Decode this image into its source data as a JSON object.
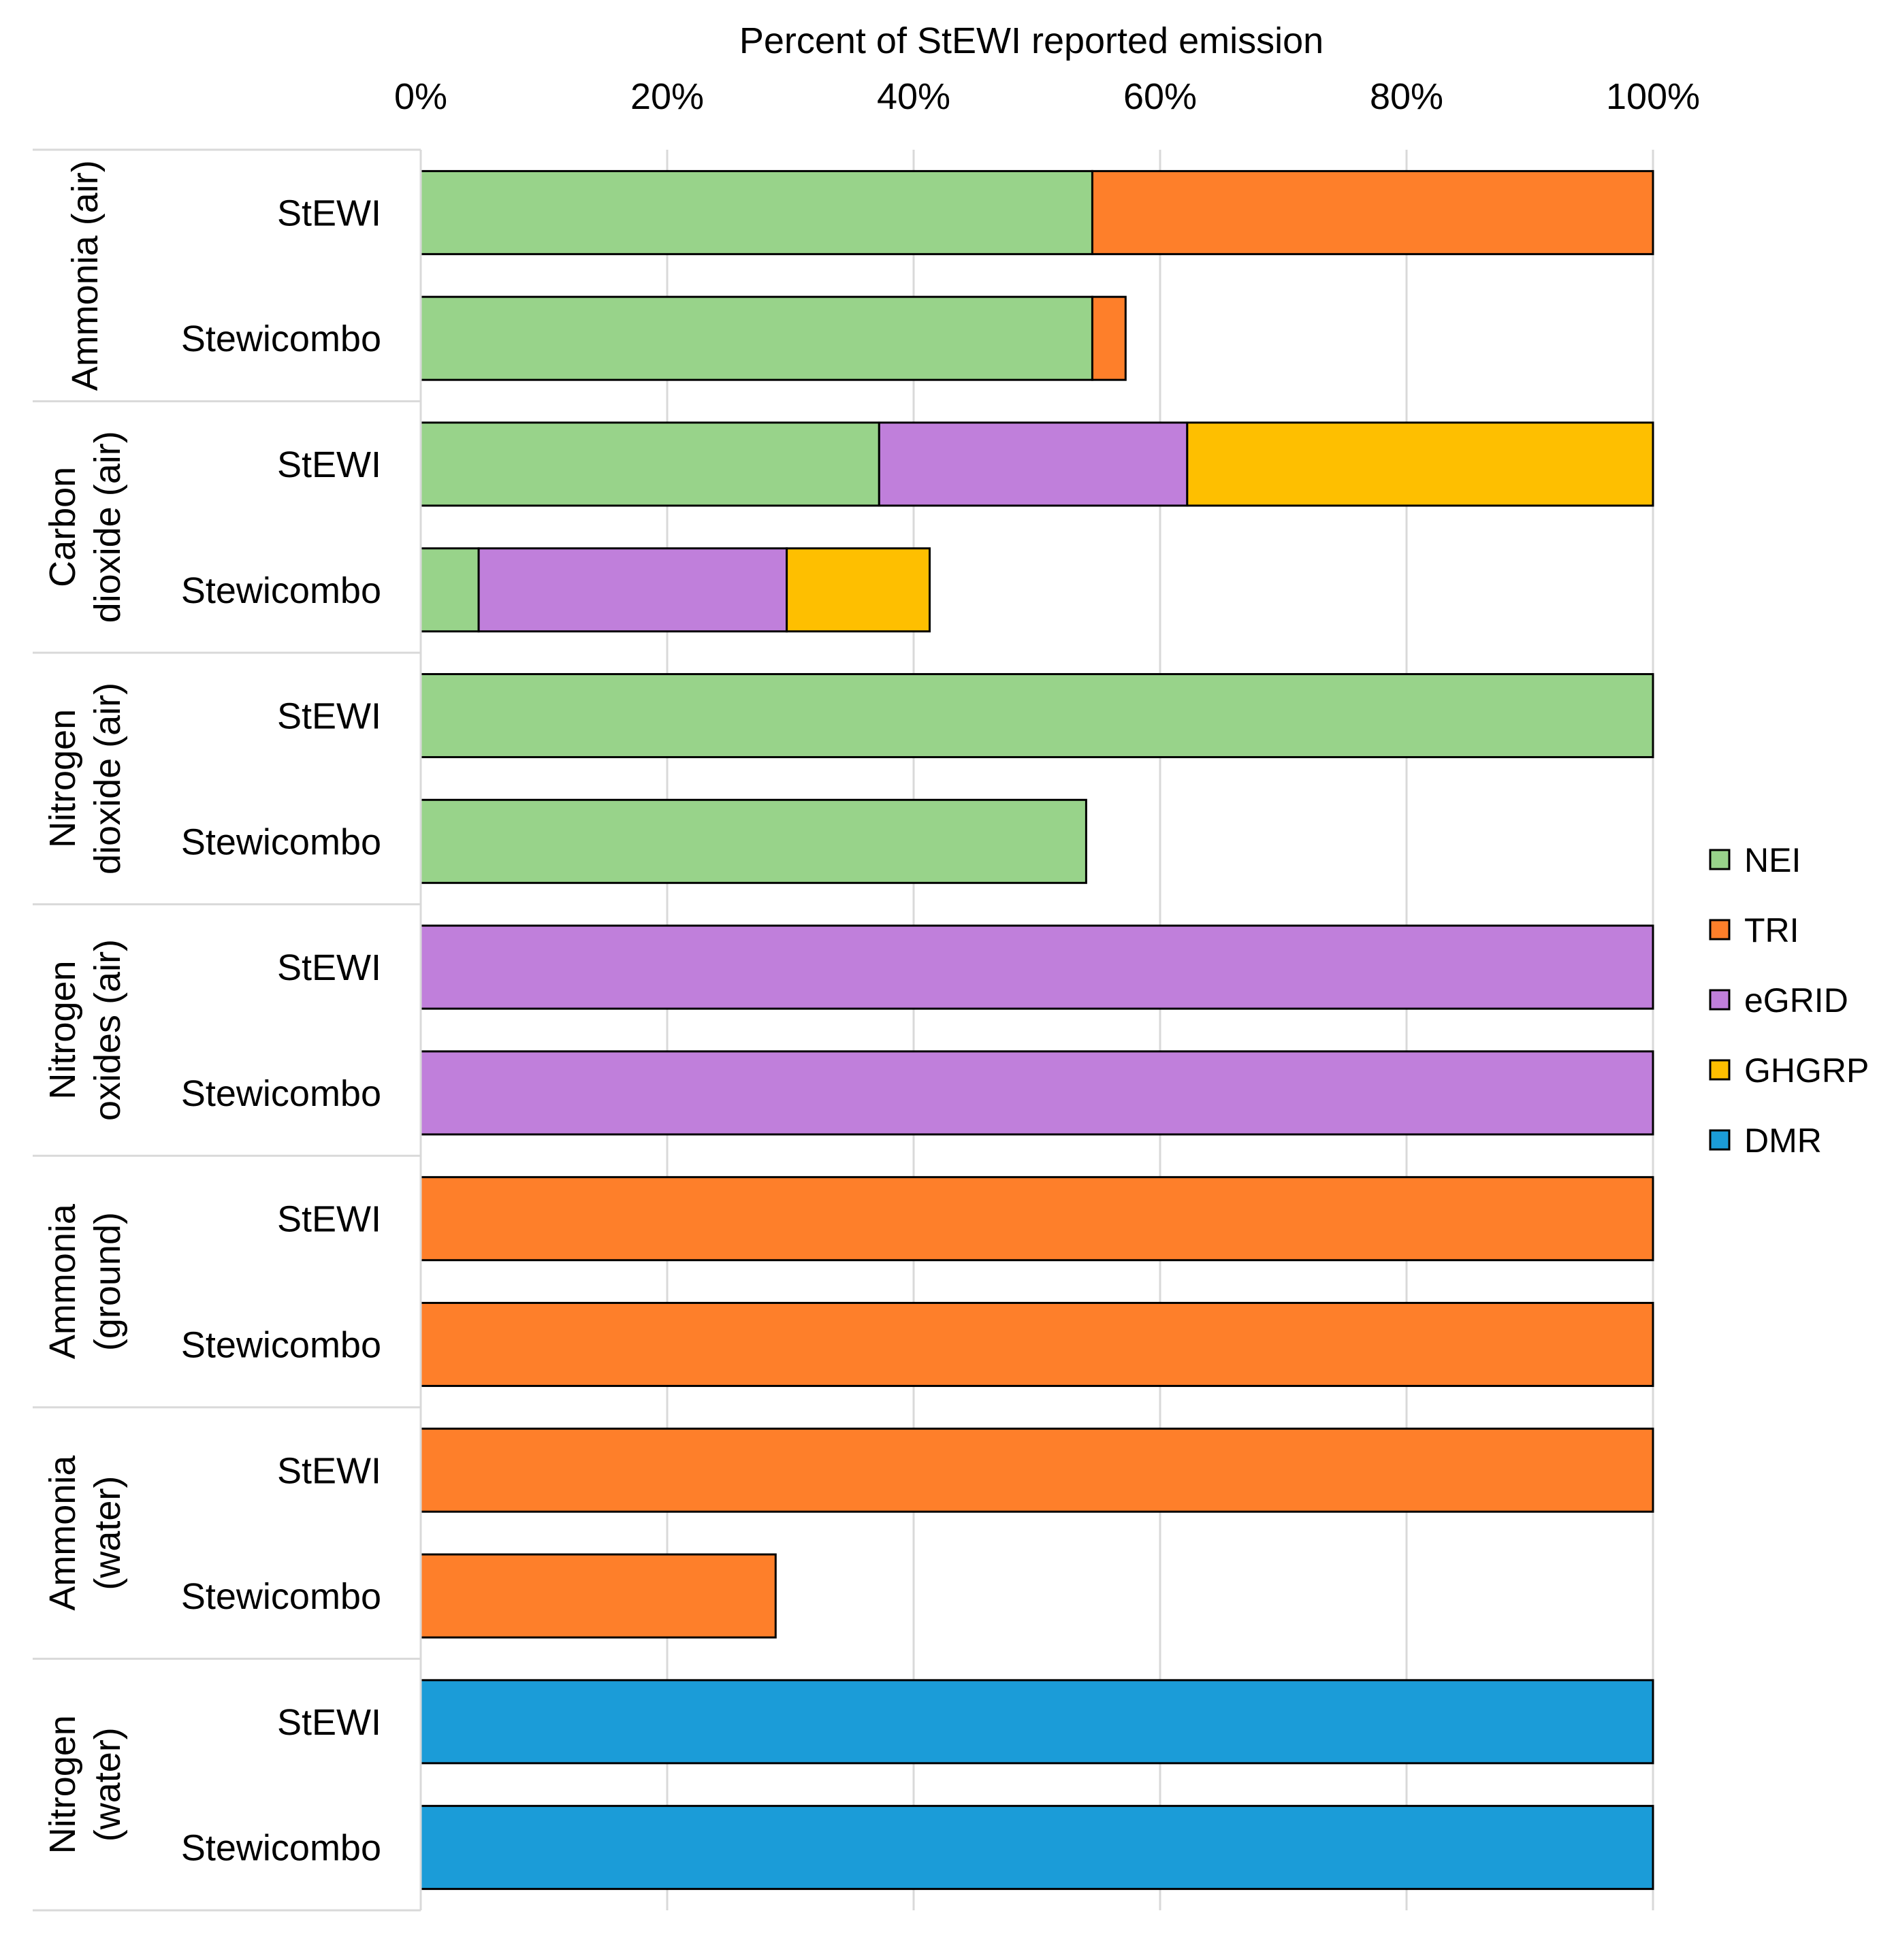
{
  "chart_data": {
    "type": "bar",
    "orientation": "horizontal",
    "stacked": true,
    "title": "",
    "xlabel": "Percent of StEWI reported emission",
    "ylabel": "",
    "xlim": [
      0,
      100
    ],
    "x_ticks": [
      "0%",
      "20%",
      "40%",
      "60%",
      "80%",
      "100%"
    ],
    "grid": true,
    "legend_position": "right",
    "series": [
      {
        "name": "NEI",
        "color": "#98D38A"
      },
      {
        "name": "TRI",
        "color": "#FE7F2A"
      },
      {
        "name": "eGRID",
        "color": "#C07FDB"
      },
      {
        "name": "GHGRP",
        "color": "#FEBF00"
      },
      {
        "name": "DMR",
        "color": "#1B9CD8"
      }
    ],
    "groups": [
      {
        "label_lines": [
          "Ammonia (air)"
        ],
        "rows": [
          {
            "label": "StEWI",
            "segments": [
              {
                "series": "NEI",
                "value": 54.5
              },
              {
                "series": "TRI",
                "value": 45.5
              }
            ]
          },
          {
            "label": "Stewicombo",
            "segments": [
              {
                "series": "NEI",
                "value": 54.5
              },
              {
                "series": "TRI",
                "value": 2.7
              }
            ]
          }
        ]
      },
      {
        "label_lines": [
          "Carbon",
          "dioxide (air)"
        ],
        "rows": [
          {
            "label": "StEWI",
            "segments": [
              {
                "series": "NEI",
                "value": 37.2
              },
              {
                "series": "eGRID",
                "value": 25.0
              },
              {
                "series": "GHGRP",
                "value": 37.8
              }
            ]
          },
          {
            "label": "Stewicombo",
            "segments": [
              {
                "series": "NEI",
                "value": 4.7
              },
              {
                "series": "eGRID",
                "value": 25.0
              },
              {
                "series": "GHGRP",
                "value": 11.6
              }
            ]
          }
        ]
      },
      {
        "label_lines": [
          "Nitrogen",
          "dioxide (air)"
        ],
        "rows": [
          {
            "label": "StEWI",
            "segments": [
              {
                "series": "NEI",
                "value": 100
              }
            ]
          },
          {
            "label": "Stewicombo",
            "segments": [
              {
                "series": "NEI",
                "value": 54.0
              }
            ]
          }
        ]
      },
      {
        "label_lines": [
          "Nitrogen",
          "oxides (air)"
        ],
        "rows": [
          {
            "label": "StEWI",
            "segments": [
              {
                "series": "eGRID",
                "value": 100
              }
            ]
          },
          {
            "label": "Stewicombo",
            "segments": [
              {
                "series": "eGRID",
                "value": 100
              }
            ]
          }
        ]
      },
      {
        "label_lines": [
          "Ammonia",
          "(ground)"
        ],
        "rows": [
          {
            "label": "StEWI",
            "segments": [
              {
                "series": "TRI",
                "value": 100
              }
            ]
          },
          {
            "label": "Stewicombo",
            "segments": [
              {
                "series": "TRI",
                "value": 100
              }
            ]
          }
        ]
      },
      {
        "label_lines": [
          "Ammonia",
          "(water)"
        ],
        "rows": [
          {
            "label": "StEWI",
            "segments": [
              {
                "series": "TRI",
                "value": 100
              }
            ]
          },
          {
            "label": "Stewicombo",
            "segments": [
              {
                "series": "TRI",
                "value": 28.8
              }
            ]
          }
        ]
      },
      {
        "label_lines": [
          "Nitrogen",
          "(water)"
        ],
        "rows": [
          {
            "label": "StEWI",
            "segments": [
              {
                "series": "DMR",
                "value": 100
              }
            ]
          },
          {
            "label": "Stewicombo",
            "segments": [
              {
                "series": "DMR",
                "value": 100
              }
            ]
          }
        ]
      }
    ]
  }
}
